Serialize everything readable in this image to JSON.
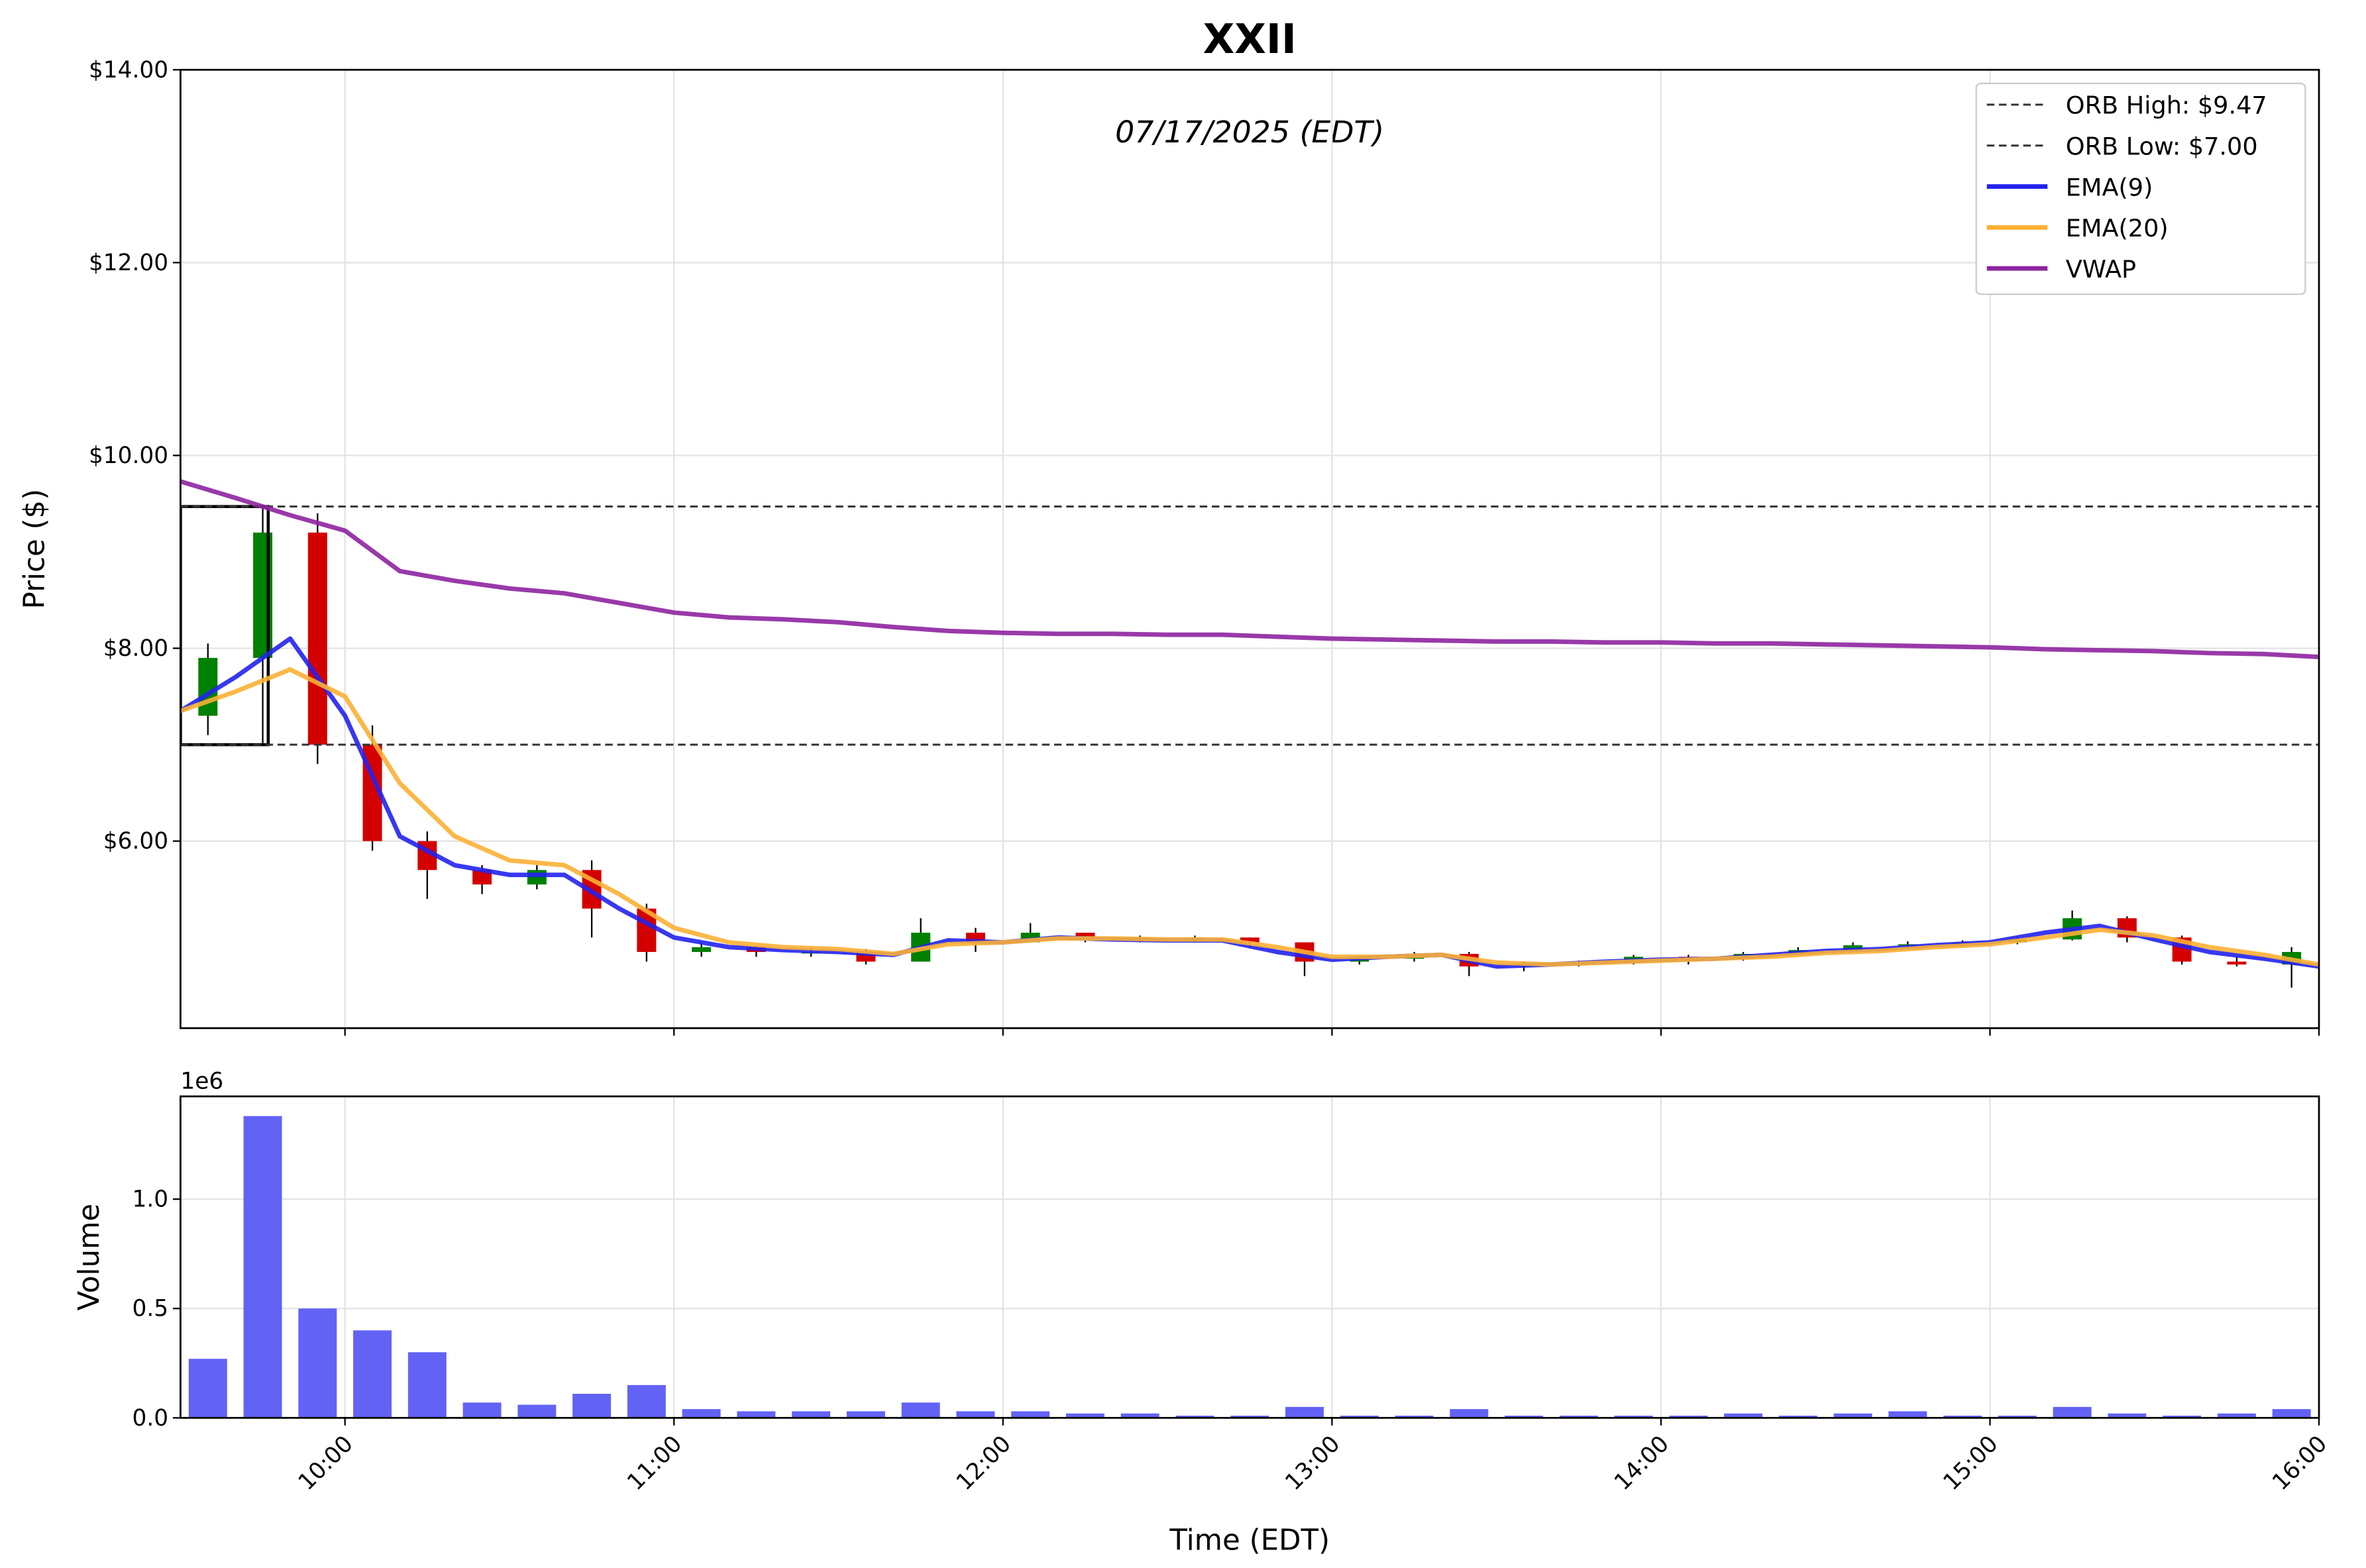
{
  "chart_data": [
    {
      "type": "candlestick",
      "title": "XXII",
      "subtitle": "07/17/2025 (EDT)",
      "ylabel": "Price ($)",
      "xlim": [
        "09:30",
        "16:00"
      ],
      "xticks": [
        "10:00",
        "11:00",
        "12:00",
        "13:00",
        "14:00",
        "15:00",
        "16:00"
      ],
      "ylim": [
        4.06,
        14
      ],
      "yticks": [
        {
          "value": 6,
          "label": "$6.00"
        },
        {
          "value": 8,
          "label": "$8.00"
        },
        {
          "value": 10,
          "label": "$10.00"
        },
        {
          "value": 12,
          "label": "$12.00"
        },
        {
          "value": 14,
          "label": "$14.00"
        }
      ],
      "grid": true,
      "legend": "upper right",
      "up_color": "#008000",
      "down_color": "#d40000",
      "candles": {
        "x": [
          "09:30",
          "09:40",
          "09:50",
          "10:00",
          "10:10",
          "10:20",
          "10:30",
          "10:40",
          "10:50",
          "11:00",
          "11:10",
          "11:20",
          "11:30",
          "11:40",
          "11:50",
          "12:00",
          "12:10",
          "12:20",
          "12:30",
          "12:40",
          "12:50",
          "13:00",
          "13:10",
          "13:20",
          "13:30",
          "13:40",
          "13:50",
          "14:00",
          "14:10",
          "14:20",
          "14:30",
          "14:40",
          "14:50",
          "15:00",
          "15:10",
          "15:20",
          "15:30",
          "15:40",
          "15:50"
        ],
        "open": [
          7.3,
          7.9,
          9.2,
          7.0,
          6.0,
          5.7,
          5.55,
          5.7,
          5.3,
          4.85,
          4.9,
          4.85,
          4.85,
          4.75,
          5.05,
          4.95,
          5.05,
          5.0,
          4.97,
          5.0,
          4.95,
          4.75,
          4.78,
          4.83,
          4.7,
          4.72,
          4.74,
          4.8,
          4.78,
          4.83,
          4.87,
          4.92,
          4.93,
          4.95,
          4.98,
          5.2,
          5.0,
          4.75,
          4.72
        ],
        "high": [
          8.05,
          9.47,
          9.4,
          7.2,
          6.1,
          5.75,
          5.75,
          5.8,
          5.35,
          4.95,
          4.92,
          4.9,
          4.88,
          5.2,
          5.1,
          5.15,
          5.05,
          5.02,
          5.02,
          5.0,
          4.95,
          4.8,
          4.85,
          4.85,
          4.75,
          4.76,
          4.82,
          4.82,
          4.85,
          4.9,
          4.95,
          4.96,
          4.97,
          5.0,
          5.28,
          5.22,
          5.02,
          4.8,
          4.9
        ],
        "low": [
          7.1,
          7.0,
          6.8,
          5.9,
          5.4,
          5.45,
          5.5,
          5.0,
          4.75,
          4.8,
          4.8,
          4.8,
          4.72,
          4.75,
          4.85,
          4.95,
          4.95,
          4.95,
          4.95,
          4.9,
          4.6,
          4.72,
          4.75,
          4.6,
          4.65,
          4.7,
          4.72,
          4.72,
          4.76,
          4.82,
          4.85,
          4.88,
          4.9,
          4.93,
          4.97,
          4.95,
          4.72,
          4.7,
          4.48
        ],
        "close": [
          7.9,
          9.2,
          7.0,
          6.0,
          5.7,
          5.55,
          5.7,
          5.3,
          4.85,
          4.9,
          4.85,
          4.85,
          4.75,
          5.05,
          4.95,
          5.05,
          5.0,
          4.97,
          5.0,
          4.95,
          4.75,
          4.78,
          4.83,
          4.7,
          4.72,
          4.74,
          4.8,
          4.78,
          4.83,
          4.87,
          4.92,
          4.93,
          4.95,
          4.98,
          5.2,
          5.0,
          4.75,
          4.72,
          4.85
        ]
      },
      "orb_window": [
        "09:30",
        "09:46"
      ],
      "hlines": [
        {
          "name": "ORB High: $9.47",
          "value": 9.47,
          "color": "#333333"
        },
        {
          "name": "ORB Low: $7.00",
          "value": 7.0,
          "color": "#333333"
        }
      ],
      "x": [
        "09:30",
        "09:40",
        "09:50",
        "10:00",
        "10:10",
        "10:20",
        "10:30",
        "10:40",
        "10:50",
        "11:00",
        "11:10",
        "11:20",
        "11:30",
        "11:40",
        "11:50",
        "12:00",
        "12:10",
        "12:20",
        "12:30",
        "12:40",
        "12:50",
        "13:00",
        "13:10",
        "13:20",
        "13:30",
        "13:40",
        "13:50",
        "14:00",
        "14:10",
        "14:20",
        "14:30",
        "14:40",
        "14:50",
        "15:00",
        "15:10",
        "15:20",
        "15:30",
        "15:40",
        "15:50",
        "16:00"
      ],
      "series": [
        {
          "name": "EMA(9)",
          "color": "#2222ee",
          "values": [
            7.35,
            7.7,
            8.1,
            7.3,
            6.05,
            5.75,
            5.65,
            5.65,
            5.3,
            5.0,
            4.9,
            4.87,
            4.85,
            4.82,
            4.97,
            4.95,
            5.0,
            4.98,
            4.97,
            4.97,
            4.85,
            4.77,
            4.8,
            4.82,
            4.7,
            4.72,
            4.75,
            4.77,
            4.78,
            4.82,
            4.86,
            4.88,
            4.92,
            4.95,
            5.05,
            5.12,
            4.98,
            4.85,
            4.78,
            4.7
          ]
        },
        {
          "name": "EMA(20)",
          "color": "#fbb034",
          "values": [
            7.35,
            7.55,
            7.78,
            7.5,
            6.6,
            6.05,
            5.8,
            5.75,
            5.45,
            5.1,
            4.95,
            4.9,
            4.88,
            4.83,
            4.93,
            4.95,
            4.99,
            4.99,
            4.98,
            4.98,
            4.9,
            4.8,
            4.8,
            4.82,
            4.74,
            4.72,
            4.74,
            4.76,
            4.78,
            4.8,
            4.84,
            4.86,
            4.9,
            4.93,
            5.0,
            5.08,
            5.02,
            4.9,
            4.82,
            4.72
          ]
        },
        {
          "name": "VWAP",
          "color": "#8e24a0",
          "values": [
            9.73,
            9.56,
            9.38,
            9.22,
            8.8,
            8.7,
            8.62,
            8.57,
            8.47,
            8.37,
            8.32,
            8.3,
            8.27,
            8.22,
            8.18,
            8.16,
            8.15,
            8.15,
            8.14,
            8.14,
            8.12,
            8.1,
            8.09,
            8.08,
            8.07,
            8.07,
            8.06,
            8.06,
            8.05,
            8.05,
            8.04,
            8.03,
            8.02,
            8.01,
            7.99,
            7.98,
            7.97,
            7.95,
            7.94,
            7.91
          ]
        }
      ]
    },
    {
      "type": "bar",
      "ylabel": "Volume",
      "xlabel": "Time (EDT)",
      "offset_label": "1e6",
      "xlim": [
        "09:30",
        "16:00"
      ],
      "xticks": [
        "10:00",
        "11:00",
        "12:00",
        "13:00",
        "14:00",
        "15:00",
        "16:00"
      ],
      "ylim": [
        0,
        1.47
      ],
      "yticks": [
        {
          "value": 0,
          "label": "0.0"
        },
        0.5,
        {
          "value": 1,
          "label": "1.0"
        }
      ],
      "grid": true,
      "color": "#6262f5",
      "x": [
        "09:30",
        "09:40",
        "09:50",
        "10:00",
        "10:10",
        "10:20",
        "10:30",
        "10:40",
        "10:50",
        "11:00",
        "11:10",
        "11:20",
        "11:30",
        "11:40",
        "11:50",
        "12:00",
        "12:10",
        "12:20",
        "12:30",
        "12:40",
        "12:50",
        "13:00",
        "13:10",
        "13:20",
        "13:30",
        "13:40",
        "13:50",
        "14:00",
        "14:10",
        "14:20",
        "14:30",
        "14:40",
        "14:50",
        "15:00",
        "15:10",
        "15:20",
        "15:30",
        "15:40",
        "15:50"
      ],
      "values": [
        0.27,
        1.38,
        0.5,
        0.4,
        0.3,
        0.07,
        0.06,
        0.11,
        0.15,
        0.04,
        0.03,
        0.03,
        0.03,
        0.07,
        0.03,
        0.03,
        0.02,
        0.02,
        0.01,
        0.01,
        0.05,
        0.01,
        0.01,
        0.04,
        0.01,
        0.01,
        0.01,
        0.01,
        0.02,
        0.01,
        0.02,
        0.03,
        0.01,
        0.01,
        0.05,
        0.02,
        0.01,
        0.02,
        0.04
      ]
    }
  ]
}
